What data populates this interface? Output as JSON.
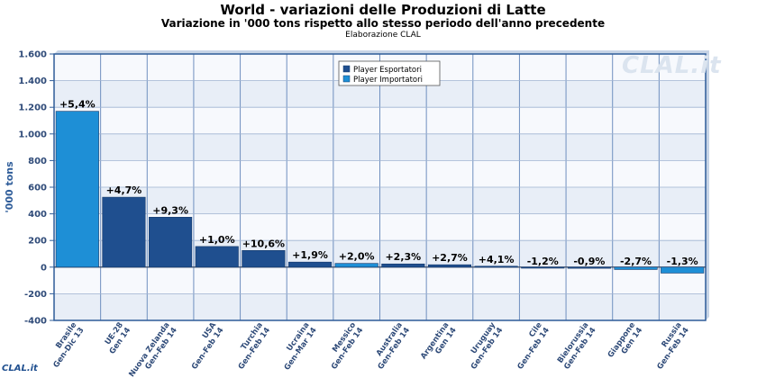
{
  "header": {
    "title": "World - variazioni delle Produzioni di Latte",
    "subtitle": "Variazione in '000 tons rispetto allo stesso periodo dell'anno precedente",
    "credit": "Elaborazione CLAL"
  },
  "watermark": {
    "main": "CLAL.it",
    "corner": "CLAL.it"
  },
  "colors": {
    "esportatori": "#1f4f8f",
    "importatori": "#1e8fd6",
    "plot_band_a": "#e8eef7",
    "plot_band_b": "#f7f9fd",
    "axis": "#2e5c99"
  },
  "chart_data": {
    "type": "bar",
    "ylabel": "'000 tons",
    "ylim": [
      -400,
      1600
    ],
    "yticks": [
      -400,
      -200,
      0,
      200,
      400,
      600,
      800,
      1000,
      1200,
      1400,
      1600
    ],
    "ytick_labels": [
      "-400",
      "-200",
      "0",
      "200",
      "400",
      "600",
      "800",
      "1.000",
      "1.200",
      "1.400",
      "1.600"
    ],
    "grid": true,
    "legend_position": "top-center",
    "legend": [
      {
        "name": "Player Esportatori",
        "color": "#1f4f8f"
      },
      {
        "name": "Player Importatori",
        "color": "#1e8fd6"
      }
    ],
    "bars": [
      {
        "country": "Brasile",
        "period": "Gen-Dic 13",
        "value": 1170,
        "label": "+5,4%",
        "group": "importatori"
      },
      {
        "country": "UE-28",
        "period": "Gen 14",
        "value": 525,
        "label": "+4,7%",
        "group": "esportatori"
      },
      {
        "country": "Nuova Zelanda",
        "period": "Gen-Feb 14",
        "value": 375,
        "label": "+9,3%",
        "group": "esportatori"
      },
      {
        "country": "USA",
        "period": "Gen-Feb 14",
        "value": 155,
        "label": "+1,0%",
        "group": "esportatori"
      },
      {
        "country": "Turchia",
        "period": "Gen-Feb 14",
        "value": 125,
        "label": "+10,6%",
        "group": "esportatori"
      },
      {
        "country": "Ucraina",
        "period": "Gen-Mar 14",
        "value": 38,
        "label": "+1,9%",
        "group": "esportatori"
      },
      {
        "country": "Messico",
        "period": "Gen-Feb 14",
        "value": 28,
        "label": "+2,0%",
        "group": "importatori"
      },
      {
        "country": "Australia",
        "period": "Gen-Feb 14",
        "value": 24,
        "label": "+2,3%",
        "group": "esportatori"
      },
      {
        "country": "Argentina",
        "period": "Gen 14",
        "value": 18,
        "label": "+2,7%",
        "group": "esportatori"
      },
      {
        "country": "Uruguay",
        "period": "Gen-Feb 14",
        "value": 7,
        "label": "+4,1%",
        "group": "esportatori"
      },
      {
        "country": "Cile",
        "period": "Gen-Feb 14",
        "value": -4,
        "label": "-1,2%",
        "group": "esportatori"
      },
      {
        "country": "Bielorussia",
        "period": "Gen-Feb 14",
        "value": -9,
        "label": "-0,9%",
        "group": "esportatori"
      },
      {
        "country": "Giappone",
        "period": "Gen 14",
        "value": -18,
        "label": "-2,7%",
        "group": "importatori"
      },
      {
        "country": "Russia",
        "period": "Gen-Feb 14",
        "value": -45,
        "label": "-1,3%",
        "group": "importatori"
      }
    ]
  }
}
